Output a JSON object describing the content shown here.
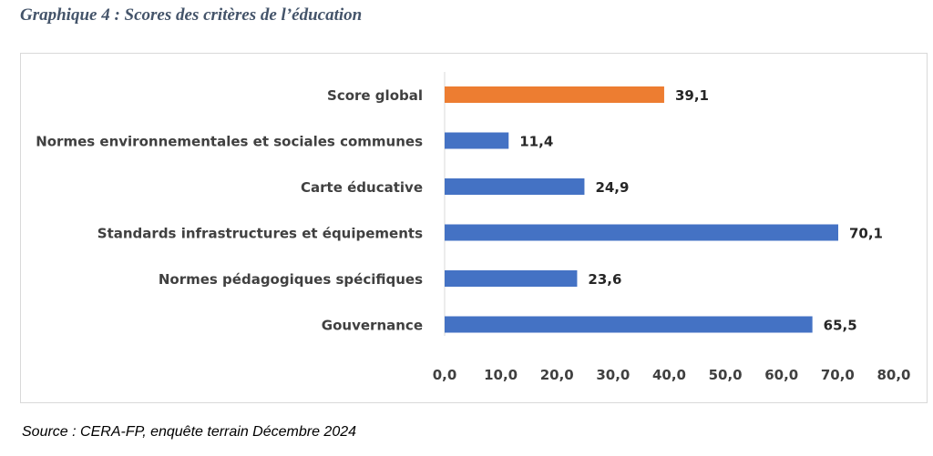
{
  "title": "Graphique 4 : Scores des critères de l’éducation",
  "source": "Source : CERA-FP, enquête terrain Décembre 2024",
  "chart_data": {
    "type": "bar",
    "orientation": "horizontal",
    "categories": [
      "Score global",
      "Normes environnementales et sociales communes",
      "Carte éducative",
      "Standards infrastructures et équipements",
      "Normes pédagogiques spécifiques",
      "Gouvernance"
    ],
    "values": [
      39.1,
      11.4,
      24.9,
      70.1,
      23.6,
      65.5
    ],
    "value_labels": [
      "39,1",
      "11,4",
      "24,9",
      "70,1",
      "23,6",
      "65,5"
    ],
    "bar_colors": [
      "#ed7d31",
      "#4472c4",
      "#4472c4",
      "#4472c4",
      "#4472c4",
      "#4472c4"
    ],
    "xlim": [
      0,
      80
    ],
    "x_ticks": [
      0,
      10,
      20,
      30,
      40,
      50,
      60,
      70,
      80
    ],
    "x_tick_labels": [
      "0,0",
      "10,0",
      "20,0",
      "30,0",
      "40,0",
      "50,0",
      "60,0",
      "70,0",
      "80,0"
    ],
    "xlabel": "",
    "ylabel": "",
    "grid": false,
    "legend": "none"
  }
}
